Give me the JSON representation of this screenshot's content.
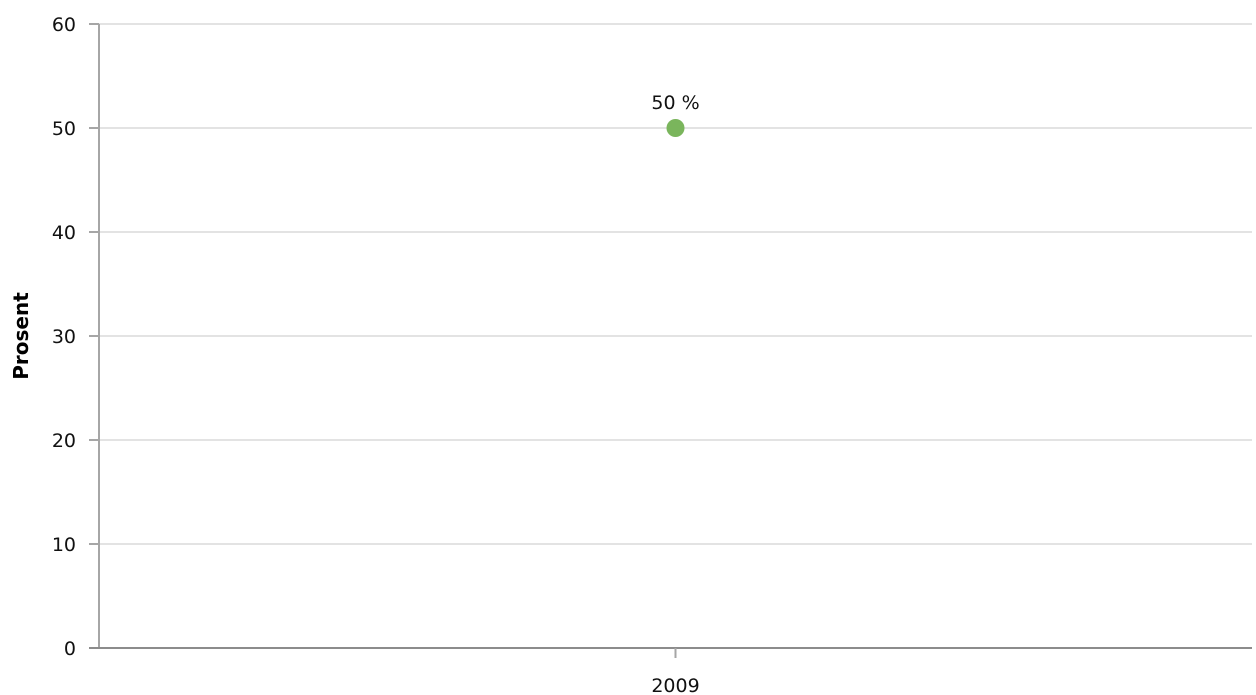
{
  "chart_data": {
    "type": "scatter",
    "title": "",
    "xlabel": "",
    "ylabel": "Prosent",
    "categories": [
      "2009"
    ],
    "series": [
      {
        "values": [
          50
        ],
        "color": "#7ab55c",
        "data_labels": [
          "50 %"
        ]
      }
    ],
    "ylim": [
      0,
      60
    ],
    "yticks": [
      "0",
      "10",
      "20",
      "30",
      "40",
      "50",
      "60"
    ],
    "grid": true,
    "legend": "none"
  }
}
